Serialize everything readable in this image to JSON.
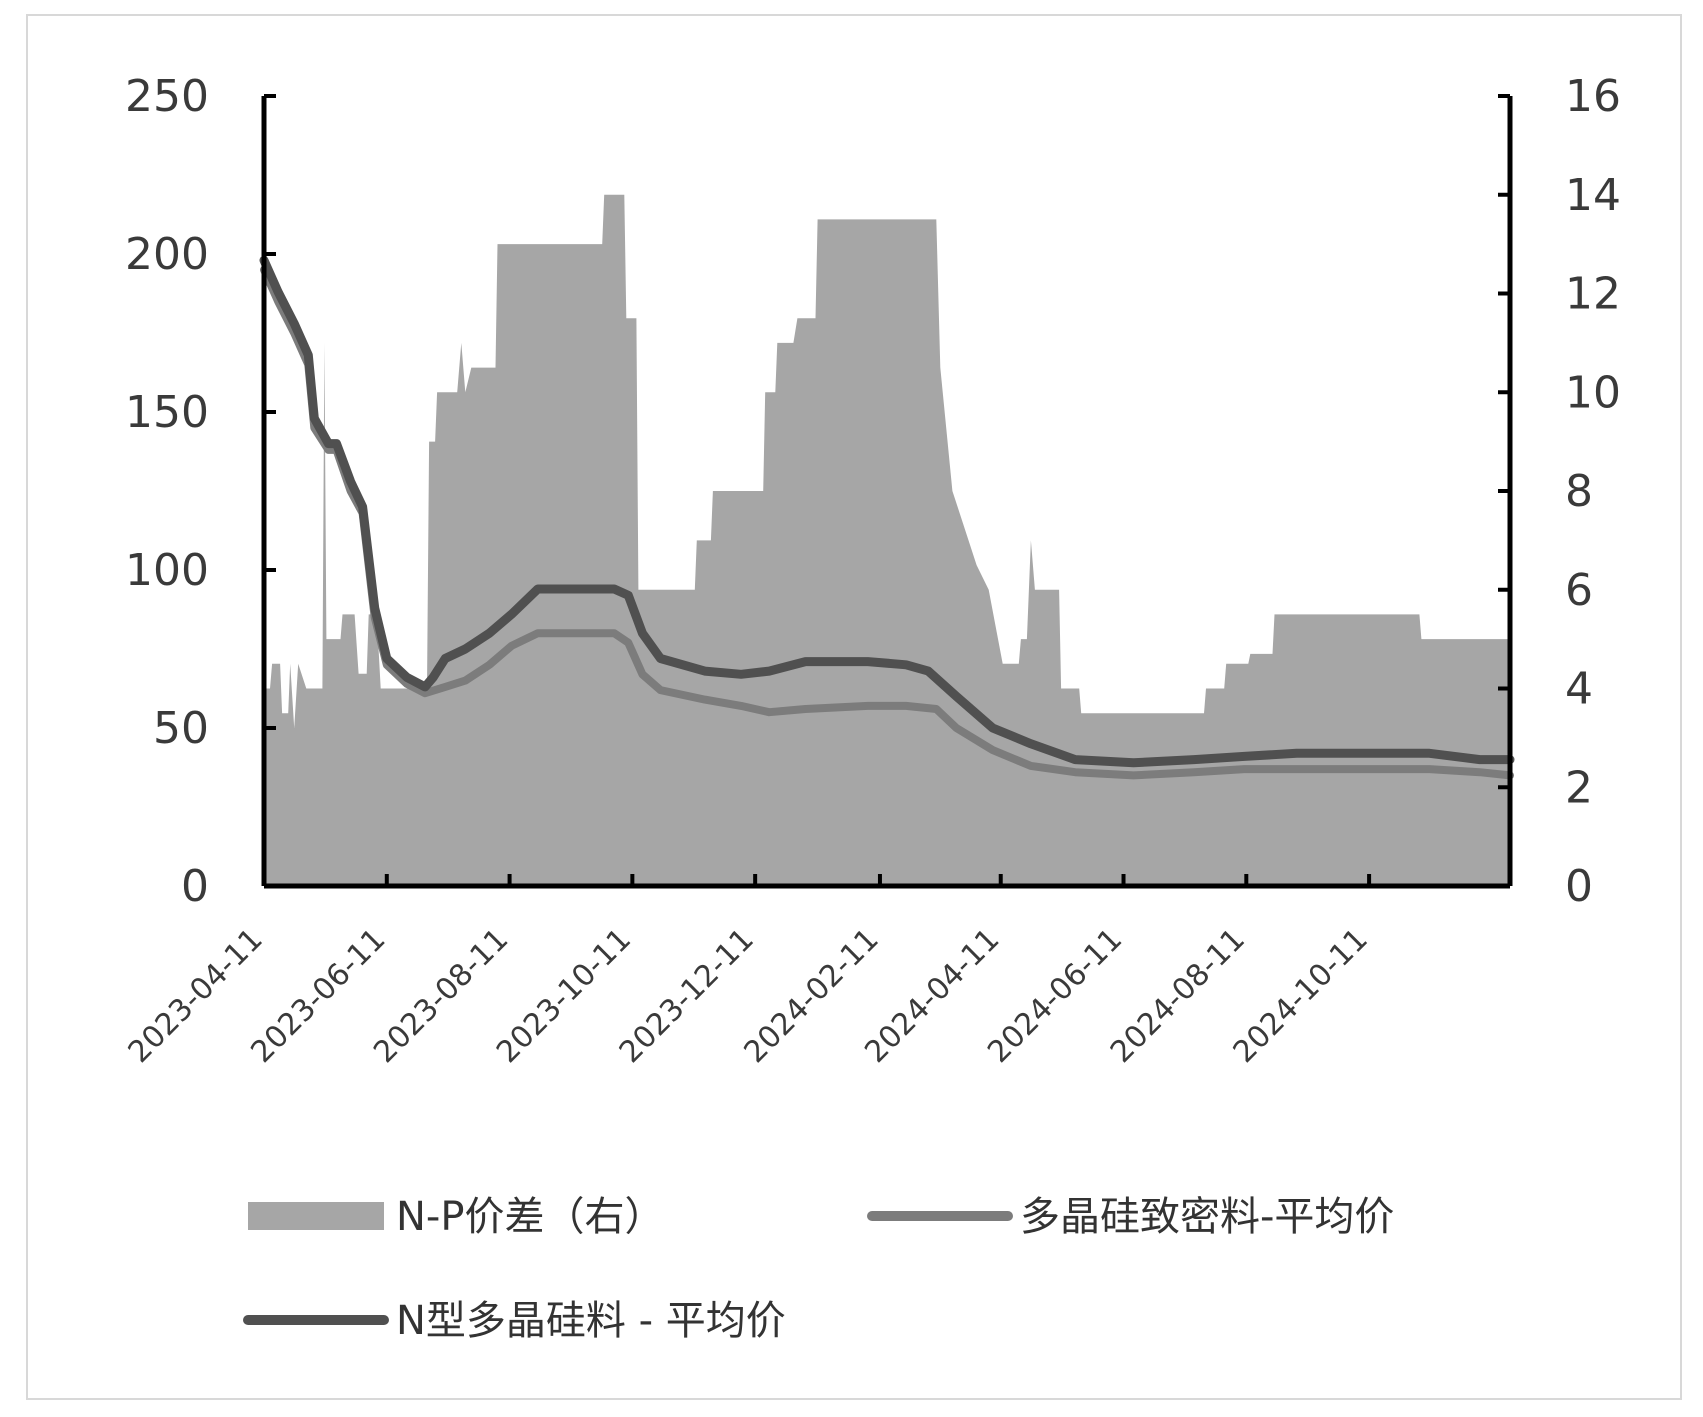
{
  "chart_data": {
    "type": "area+line",
    "title": "",
    "grid": false,
    "legend_position": "bottom",
    "x_tick_labels": [
      "2023-04-11",
      "2023-06-11",
      "2023-08-11",
      "2023-10-11",
      "2023-12-11",
      "2024-02-11",
      "2024-04-11",
      "2024-06-11",
      "2024-08-11",
      "2024-10-11"
    ],
    "x_range": [
      "2023-04-11",
      "2024-12-20"
    ],
    "y_left": {
      "ticks": [
        "0",
        "50",
        "100",
        "150",
        "200",
        "250"
      ],
      "range": [
        0,
        250
      ]
    },
    "y_right": {
      "ticks": [
        "0",
        "2",
        "4",
        "6",
        "8",
        "10",
        "12",
        "14",
        "16"
      ],
      "range": [
        0,
        16
      ]
    },
    "colors": {
      "area": "#a6a6a6",
      "dense": "#7c7c7c",
      "ntype": "#505050",
      "axis": "#000000"
    },
    "series": [
      {
        "name": "N-P价差（右）",
        "type": "area",
        "axis": "right",
        "points": [
          [
            "2023-04-11",
            4.0
          ],
          [
            "2023-04-14",
            4.0
          ],
          [
            "2023-04-15",
            4.5
          ],
          [
            "2023-04-19",
            4.5
          ],
          [
            "2023-04-20",
            3.5
          ],
          [
            "2023-04-23",
            3.5
          ],
          [
            "2023-04-24",
            4.5
          ],
          [
            "2023-04-26",
            3.2
          ],
          [
            "2023-04-28",
            4.5
          ],
          [
            "2023-05-02",
            4.0
          ],
          [
            "2023-05-10",
            4.0
          ],
          [
            "2023-05-11",
            11.0
          ],
          [
            "2023-05-12",
            5.0
          ],
          [
            "2023-05-19",
            5.0
          ],
          [
            "2023-05-20",
            5.5
          ],
          [
            "2023-05-26",
            5.5
          ],
          [
            "2023-05-28",
            4.3
          ],
          [
            "2023-06-01",
            4.3
          ],
          [
            "2023-06-02",
            5.5
          ],
          [
            "2023-06-06",
            5.5
          ],
          [
            "2023-06-08",
            4.0
          ],
          [
            "2023-07-01",
            4.0
          ],
          [
            "2023-07-02",
            9.0
          ],
          [
            "2023-07-05",
            9.0
          ],
          [
            "2023-07-06",
            10.0
          ],
          [
            "2023-07-16",
            10.0
          ],
          [
            "2023-07-18",
            11.0
          ],
          [
            "2023-07-20",
            10.0
          ],
          [
            "2023-07-23",
            10.5
          ],
          [
            "2023-08-04",
            10.5
          ],
          [
            "2023-08-05",
            13.0
          ],
          [
            "2023-09-26",
            13.0
          ],
          [
            "2023-09-27",
            14.0
          ],
          [
            "2023-10-07",
            14.0
          ],
          [
            "2023-10-08",
            11.5
          ],
          [
            "2023-10-13",
            11.5
          ],
          [
            "2023-10-14",
            6.0
          ],
          [
            "2023-11-11",
            6.0
          ],
          [
            "2023-11-12",
            7.0
          ],
          [
            "2023-11-19",
            7.0
          ],
          [
            "2023-11-20",
            8.0
          ],
          [
            "2023-12-15",
            8.0
          ],
          [
            "2023-12-16",
            10.0
          ],
          [
            "2023-12-21",
            10.0
          ],
          [
            "2023-12-22",
            11.0
          ],
          [
            "2023-12-30",
            11.0
          ],
          [
            "2024-01-01",
            11.5
          ],
          [
            "2024-01-10",
            11.5
          ],
          [
            "2024-01-11",
            13.5
          ],
          [
            "2024-03-10",
            13.5
          ],
          [
            "2024-03-12",
            10.5
          ],
          [
            "2024-03-18",
            8.0
          ],
          [
            "2024-03-22",
            7.5
          ],
          [
            "2024-03-30",
            6.5
          ],
          [
            "2024-04-05",
            6.0
          ],
          [
            "2024-04-12",
            4.5
          ],
          [
            "2024-04-20",
            4.5
          ],
          [
            "2024-04-21",
            5.0
          ],
          [
            "2024-04-24",
            5.0
          ],
          [
            "2024-04-26",
            7.0
          ],
          [
            "2024-04-28",
            6.0
          ],
          [
            "2024-05-10",
            6.0
          ],
          [
            "2024-05-11",
            4.0
          ],
          [
            "2024-05-20",
            4.0
          ],
          [
            "2024-05-21",
            3.5
          ],
          [
            "2024-07-21",
            3.5
          ],
          [
            "2024-07-22",
            4.0
          ],
          [
            "2024-07-31",
            4.0
          ],
          [
            "2024-08-01",
            4.5
          ],
          [
            "2024-08-12",
            4.5
          ],
          [
            "2024-08-13",
            4.7
          ],
          [
            "2024-08-24",
            4.7
          ],
          [
            "2024-08-25",
            5.5
          ],
          [
            "2024-11-05",
            5.5
          ],
          [
            "2024-11-06",
            5.0
          ],
          [
            "2024-12-20",
            5.0
          ]
        ]
      },
      {
        "name": "多晶硅致密料-平均价",
        "type": "line",
        "axis": "left",
        "points": [
          [
            "2023-04-11",
            195
          ],
          [
            "2023-04-18",
            185
          ],
          [
            "2023-04-26",
            175
          ],
          [
            "2023-05-03",
            165
          ],
          [
            "2023-05-06",
            145
          ],
          [
            "2023-05-13",
            138
          ],
          [
            "2023-05-17",
            138
          ],
          [
            "2023-05-24",
            125
          ],
          [
            "2023-05-30",
            118
          ],
          [
            "2023-06-05",
            85
          ],
          [
            "2023-06-11",
            70
          ],
          [
            "2023-06-21",
            64
          ],
          [
            "2023-06-30",
            61
          ],
          [
            "2023-07-10",
            63
          ],
          [
            "2023-07-20",
            65
          ],
          [
            "2023-08-01",
            70
          ],
          [
            "2023-08-12",
            76
          ],
          [
            "2023-08-25",
            80
          ],
          [
            "2023-09-12",
            80
          ],
          [
            "2023-10-02",
            80
          ],
          [
            "2023-10-09",
            77
          ],
          [
            "2023-10-16",
            67
          ],
          [
            "2023-10-25",
            62
          ],
          [
            "2023-11-16",
            59
          ],
          [
            "2023-12-04",
            57
          ],
          [
            "2023-12-18",
            55
          ],
          [
            "2024-01-05",
            56
          ],
          [
            "2024-02-05",
            57
          ],
          [
            "2024-02-24",
            57
          ],
          [
            "2024-03-10",
            56
          ],
          [
            "2024-03-20",
            50
          ],
          [
            "2024-04-07",
            43
          ],
          [
            "2024-04-26",
            38
          ],
          [
            "2024-05-18",
            36
          ],
          [
            "2024-06-16",
            35
          ],
          [
            "2024-07-16",
            36
          ],
          [
            "2024-08-10",
            37
          ],
          [
            "2024-09-05",
            37
          ],
          [
            "2024-10-11",
            37
          ],
          [
            "2024-11-10",
            37
          ],
          [
            "2024-12-05",
            36
          ],
          [
            "2024-12-20",
            35
          ]
        ]
      },
      {
        "name": "N型多晶硅料 - 平均价",
        "type": "line",
        "axis": "left",
        "points": [
          [
            "2023-04-11",
            198
          ],
          [
            "2023-04-18",
            188
          ],
          [
            "2023-04-26",
            178
          ],
          [
            "2023-05-03",
            168
          ],
          [
            "2023-05-06",
            148
          ],
          [
            "2023-05-13",
            140
          ],
          [
            "2023-05-17",
            140
          ],
          [
            "2023-05-24",
            128
          ],
          [
            "2023-05-30",
            120
          ],
          [
            "2023-06-05",
            88
          ],
          [
            "2023-06-11",
            72
          ],
          [
            "2023-06-21",
            66
          ],
          [
            "2023-06-30",
            63
          ],
          [
            "2023-07-04",
            66
          ],
          [
            "2023-07-10",
            72
          ],
          [
            "2023-07-20",
            75
          ],
          [
            "2023-08-01",
            80
          ],
          [
            "2023-08-12",
            86
          ],
          [
            "2023-08-25",
            94
          ],
          [
            "2023-09-12",
            94
          ],
          [
            "2023-10-02",
            94
          ],
          [
            "2023-10-09",
            92
          ],
          [
            "2023-10-16",
            80
          ],
          [
            "2023-10-25",
            72
          ],
          [
            "2023-11-16",
            68
          ],
          [
            "2023-12-04",
            67
          ],
          [
            "2023-12-18",
            68
          ],
          [
            "2024-01-05",
            71
          ],
          [
            "2024-02-05",
            71
          ],
          [
            "2024-02-24",
            70
          ],
          [
            "2024-03-06",
            68
          ],
          [
            "2024-03-20",
            60
          ],
          [
            "2024-04-07",
            50
          ],
          [
            "2024-04-26",
            45
          ],
          [
            "2024-05-18",
            40
          ],
          [
            "2024-06-16",
            39
          ],
          [
            "2024-07-16",
            40
          ],
          [
            "2024-08-10",
            41
          ],
          [
            "2024-09-05",
            42
          ],
          [
            "2024-10-11",
            42
          ],
          [
            "2024-11-10",
            42
          ],
          [
            "2024-12-05",
            40
          ],
          [
            "2024-12-20",
            40
          ]
        ]
      }
    ]
  }
}
